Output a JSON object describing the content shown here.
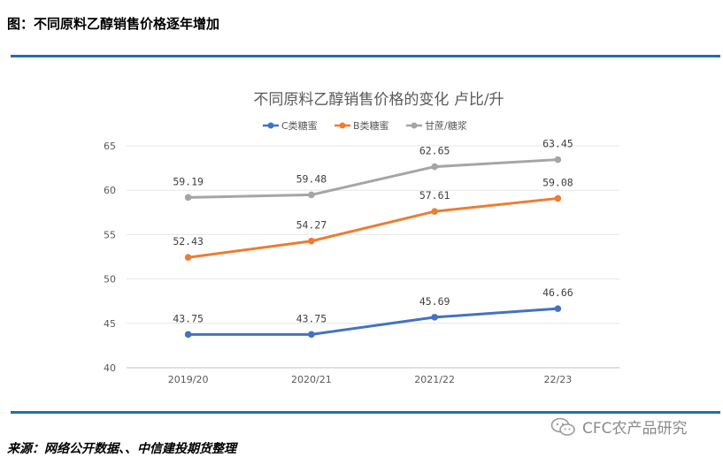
{
  "page": {
    "figure_title": "图：不同原料乙醇销售价格逐年增加",
    "source": "来源：网络公开数据、、中信建投期货整理",
    "watermark": "CFC农产品研究"
  },
  "chart_data": {
    "type": "line",
    "title": "不同原料乙醇销售价格的变化 卢比/升",
    "categories": [
      "2019/20",
      "2020/21",
      "2021/22",
      "22/23"
    ],
    "ylim": [
      40,
      65
    ],
    "yticks": [
      40,
      45,
      50,
      55,
      60,
      65
    ],
    "grid": "horizontal",
    "legend_position": "top",
    "series": [
      {
        "name": "C类糖蜜",
        "color": "#4472c4",
        "values": [
          43.75,
          43.75,
          45.69,
          46.66
        ],
        "labels": [
          "43.75",
          "43.75",
          "45.69",
          "46.66"
        ]
      },
      {
        "name": "B类糖蜜",
        "color": "#ed7d31",
        "values": [
          52.43,
          54.27,
          57.61,
          59.08
        ],
        "labels": [
          "52.43",
          "54.27",
          "57.61",
          "59.08"
        ]
      },
      {
        "name": "甘蔗/糖浆",
        "color": "#a5a5a5",
        "values": [
          59.19,
          59.48,
          62.65,
          63.45
        ],
        "labels": [
          "59.19",
          "59.48",
          "62.65",
          "63.45"
        ]
      }
    ]
  }
}
